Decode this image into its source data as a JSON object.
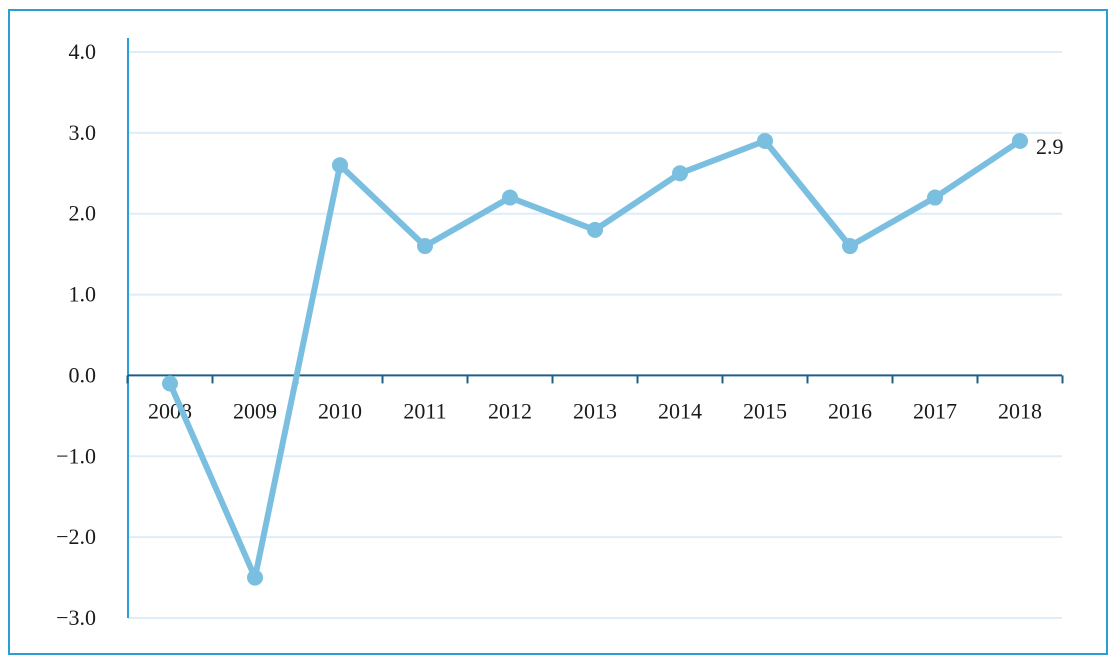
{
  "chart_data": {
    "type": "line",
    "title": "",
    "xlabel": "",
    "ylabel": "",
    "categories": [
      "2008",
      "2009",
      "2010",
      "2011",
      "2012",
      "2013",
      "2014",
      "2015",
      "2016",
      "2017",
      "2018"
    ],
    "series": [
      {
        "values": [
          -0.1,
          -2.5,
          2.6,
          1.6,
          2.2,
          1.8,
          2.5,
          2.9,
          1.6,
          2.2,
          2.9
        ]
      }
    ],
    "ylim": [
      -3.0,
      4.0
    ],
    "yticks": [
      "4.0",
      "3.0",
      "2.0",
      "1.0",
      "0.0",
      "−1.0",
      "−2.0",
      "−3.0"
    ],
    "ytick_values": [
      4,
      3,
      2,
      1,
      0,
      -1,
      -2,
      -3
    ],
    "annotations": [
      {
        "category": "2018",
        "text": "2.9"
      }
    ],
    "grid": true,
    "colors": {
      "line": "#7bbfe0",
      "axis": "#2a9fd6",
      "grid": "#ddeef8",
      "border": "#2a9fd6"
    }
  }
}
